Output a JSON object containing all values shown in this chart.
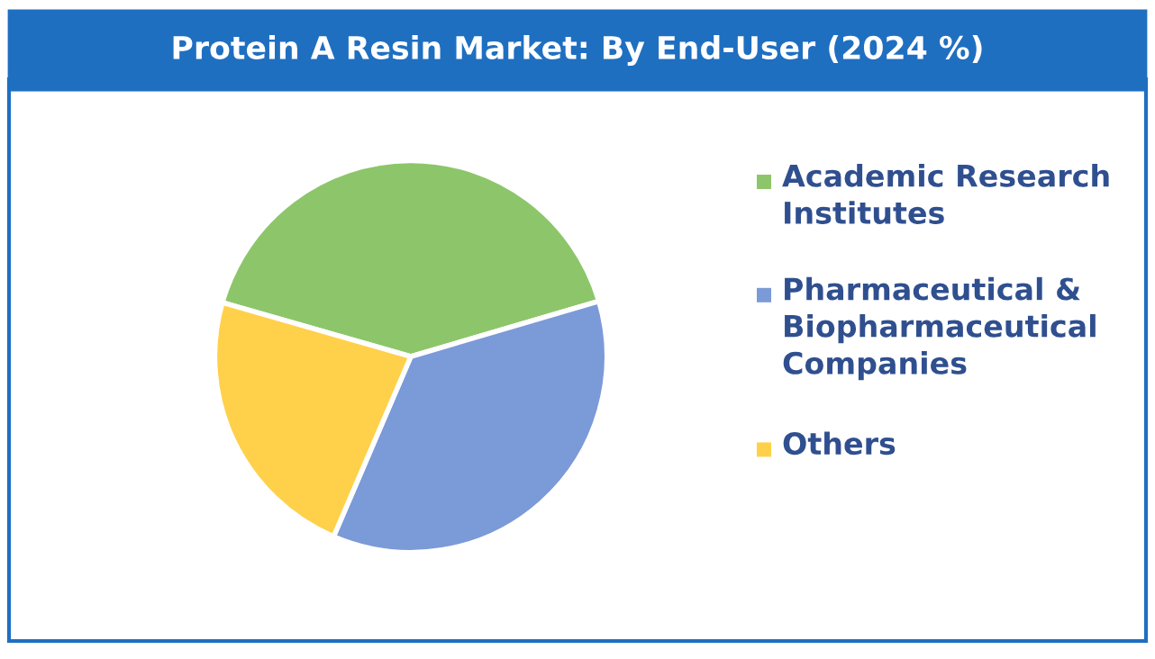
{
  "chart_data": {
    "type": "pie",
    "title": "Protein A Resin Market: By End-User (2024 %)",
    "categories": [
      "Academic Research Institutes",
      "Pharmaceutical & Biopharmaceutical Companies",
      "Others"
    ],
    "values": [
      41,
      36,
      23
    ],
    "colors": [
      "#8dc66a",
      "#7b9ad8",
      "#ffd04a"
    ],
    "legend": "right"
  }
}
